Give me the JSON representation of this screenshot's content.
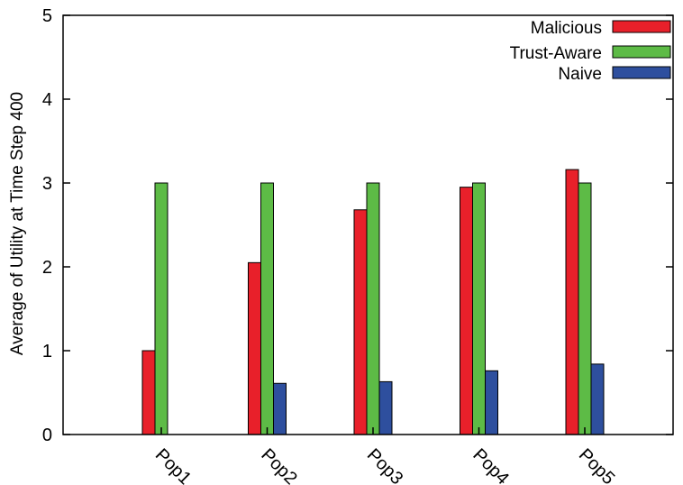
{
  "chart_data": {
    "type": "bar",
    "title": "",
    "xlabel": "",
    "ylabel": "Average of Utility at Time Step 400",
    "categories": [
      "Pop1",
      "Pop2",
      "Pop3",
      "Pop4",
      "Pop5"
    ],
    "ylim": [
      0,
      5
    ],
    "yticks": [
      "0",
      "1",
      "2",
      "3",
      "4",
      "5"
    ],
    "grid": false,
    "legend_position": "top-right",
    "series": [
      {
        "name": "Malicious",
        "color": "#e8202a",
        "values": [
          1.0,
          2.05,
          2.68,
          2.95,
          3.16
        ]
      },
      {
        "name": "Trust-Aware",
        "color": "#5dbb46",
        "values": [
          3.0,
          3.0,
          3.0,
          3.0,
          3.0
        ]
      },
      {
        "name": "Naive",
        "color": "#2e4f9e",
        "values": [
          0,
          0.61,
          0.63,
          0.76,
          0.84
        ]
      }
    ]
  }
}
